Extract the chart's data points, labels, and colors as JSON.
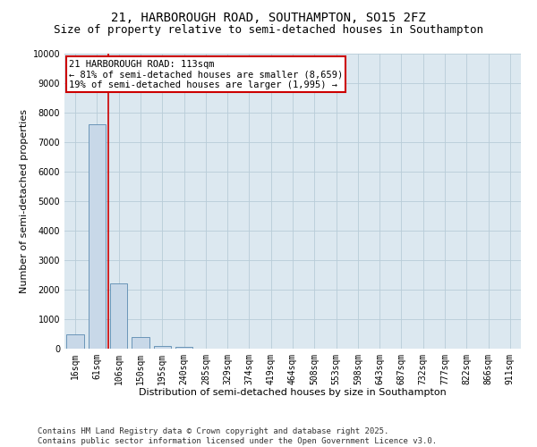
{
  "title": "21, HARBOROUGH ROAD, SOUTHAMPTON, SO15 2FZ",
  "subtitle": "Size of property relative to semi-detached houses in Southampton",
  "xlabel": "Distribution of semi-detached houses by size in Southampton",
  "ylabel": "Number of semi-detached properties",
  "categories": [
    "16sqm",
    "61sqm",
    "106sqm",
    "150sqm",
    "195sqm",
    "240sqm",
    "285sqm",
    "329sqm",
    "374sqm",
    "419sqm",
    "464sqm",
    "508sqm",
    "553sqm",
    "598sqm",
    "643sqm",
    "687sqm",
    "732sqm",
    "777sqm",
    "822sqm",
    "866sqm",
    "911sqm"
  ],
  "values": [
    500,
    7600,
    2200,
    400,
    100,
    50,
    0,
    0,
    0,
    0,
    0,
    0,
    0,
    0,
    0,
    0,
    0,
    0,
    0,
    0,
    0
  ],
  "bar_color": "#c8d8e8",
  "bar_edge_color": "#5a8ab0",
  "vline_pos": 1.5,
  "vline_color": "#cc0000",
  "annotation_text": "21 HARBOROUGH ROAD: 113sqm\n← 81% of semi-detached houses are smaller (8,659)\n19% of semi-detached houses are larger (1,995) →",
  "annotation_box_color": "#ffffff",
  "annotation_box_edge_color": "#cc0000",
  "ylim": [
    0,
    10000
  ],
  "yticks": [
    0,
    1000,
    2000,
    3000,
    4000,
    5000,
    6000,
    7000,
    8000,
    9000,
    10000
  ],
  "plot_bg_color": "#dce8f0",
  "background_color": "#ffffff",
  "grid_color": "#b8ccd8",
  "footer": "Contains HM Land Registry data © Crown copyright and database right 2025.\nContains public sector information licensed under the Open Government Licence v3.0.",
  "title_fontsize": 10,
  "subtitle_fontsize": 9,
  "axis_label_fontsize": 8,
  "tick_fontsize": 7,
  "annotation_fontsize": 7.5,
  "footer_fontsize": 6.5
}
